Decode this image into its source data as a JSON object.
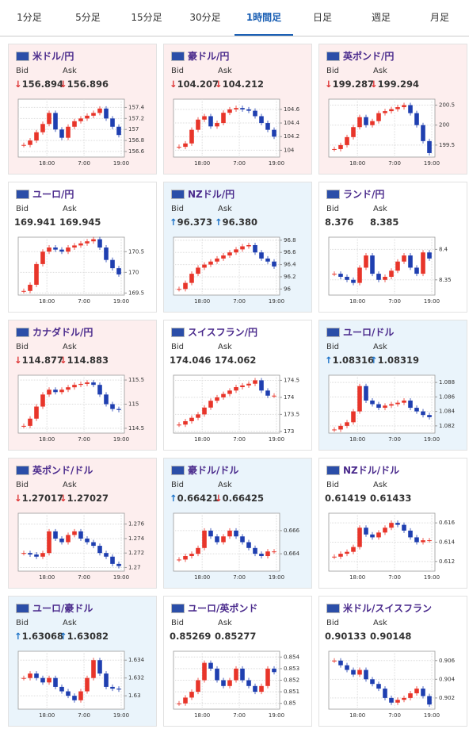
{
  "tabs": [
    "1分足",
    "5分足",
    "15分足",
    "30分足",
    "1時間足",
    "日足",
    "週足",
    "月足"
  ],
  "active_tab": 4,
  "bid_label": "Bid",
  "ask_label": "Ask",
  "x_labels": [
    "18:00",
    "7:00",
    "19:00"
  ],
  "cards": [
    {
      "title": "米ドル/円",
      "bid": "↓156.894",
      "ask": "↓156.896",
      "background": "#fdeeee",
      "chart": {
        "type": "candle",
        "ylim": [
          156.5,
          157.55
        ],
        "yticks": [
          156.6,
          156.8,
          157,
          157.2,
          157.4
        ],
        "values": [
          156.72,
          156.8,
          156.95,
          157.1,
          157.3,
          157.0,
          156.85,
          157.05,
          157.15,
          157.2,
          157.25,
          157.3,
          157.38,
          157.2,
          157.05,
          156.9
        ]
      }
    },
    {
      "title": "豪ドル/円",
      "bid": "↓104.207",
      "ask": "↓104.212",
      "background": "#fdeeee",
      "chart": {
        "type": "candle",
        "ylim": [
          103.9,
          104.75
        ],
        "yticks": [
          104,
          104.2,
          104.4,
          104.6
        ],
        "values": [
          104.05,
          104.1,
          104.3,
          104.45,
          104.5,
          104.35,
          104.4,
          104.55,
          104.6,
          104.62,
          104.6,
          104.58,
          104.5,
          104.4,
          104.3,
          104.2
        ]
      }
    },
    {
      "title": "英ポンド/円",
      "bid": "↓199.287",
      "ask": "↓199.294",
      "background": "#fdeeee",
      "chart": {
        "type": "candle",
        "ylim": [
          199.2,
          200.65
        ],
        "yticks": [
          199.5,
          200,
          200.5
        ],
        "values": [
          199.4,
          199.5,
          199.7,
          199.95,
          200.2,
          200.0,
          200.1,
          200.3,
          200.35,
          200.4,
          200.45,
          200.5,
          200.3,
          200.0,
          199.6,
          199.3
        ]
      }
    },
    {
      "title": "ユーロ/円",
      "bid": "169.941",
      "ask": "169.945",
      "background": "#ffffff",
      "chart": {
        "type": "candle",
        "ylim": [
          169.45,
          170.85
        ],
        "yticks": [
          169.5,
          170,
          170.5
        ],
        "values": [
          169.55,
          169.7,
          170.2,
          170.5,
          170.6,
          170.55,
          170.5,
          170.6,
          170.65,
          170.7,
          170.75,
          170.8,
          170.6,
          170.3,
          170.1,
          169.95
        ]
      }
    },
    {
      "title": "NZドル/円",
      "bid": "↑96.373",
      "ask": "↑96.380",
      "background": "#eaf4fb",
      "chart": {
        "type": "candle",
        "ylim": [
          95.9,
          96.85
        ],
        "yticks": [
          96,
          96.2,
          96.4,
          96.6,
          96.8
        ],
        "values": [
          96.0,
          96.1,
          96.25,
          96.35,
          96.4,
          96.45,
          96.5,
          96.55,
          96.6,
          96.65,
          96.7,
          96.72,
          96.6,
          96.5,
          96.45,
          96.37
        ]
      }
    },
    {
      "title": "ランド/円",
      "bid": "8.376",
      "ask": "8.385",
      "background": "#ffffff",
      "chart": {
        "type": "candle",
        "ylim": [
          8.325,
          8.42
        ],
        "yticks": [
          8.35,
          8.4
        ],
        "values": [
          8.36,
          8.355,
          8.35,
          8.345,
          8.37,
          8.39,
          8.36,
          8.35,
          8.355,
          8.365,
          8.38,
          8.39,
          8.37,
          8.36,
          8.395,
          8.385
        ]
      }
    },
    {
      "title": "カナダドル/円",
      "bid": "↓114.877",
      "ask": "↓114.883",
      "background": "#fdeeee",
      "chart": {
        "type": "candle",
        "ylim": [
          114.4,
          115.6
        ],
        "yticks": [
          114.5,
          115,
          115.5
        ],
        "values": [
          114.55,
          114.7,
          114.95,
          115.2,
          115.3,
          115.25,
          115.3,
          115.35,
          115.4,
          115.42,
          115.45,
          115.4,
          115.2,
          115.0,
          114.9,
          114.88
        ]
      }
    },
    {
      "title": "スイスフラン/円",
      "bid": "174.046",
      "ask": "174.062",
      "background": "#ffffff",
      "chart": {
        "type": "candle",
        "ylim": [
          172.95,
          174.65
        ],
        "yticks": [
          173,
          173.5,
          174,
          174.5
        ],
        "values": [
          173.2,
          173.3,
          173.4,
          173.5,
          173.7,
          173.9,
          174.0,
          174.1,
          174.2,
          174.3,
          174.35,
          174.4,
          174.5,
          174.2,
          174.05,
          174.05
        ]
      }
    },
    {
      "title": "ユーロ/ドル",
      "bid": "↑1.08316",
      "ask": "↑1.08319",
      "background": "#eaf4fb",
      "chart": {
        "type": "candle",
        "ylim": [
          1.081,
          1.089
        ],
        "yticks": [
          1.082,
          1.084,
          1.086,
          1.088
        ],
        "values": [
          1.0815,
          1.082,
          1.0825,
          1.084,
          1.0875,
          1.0855,
          1.085,
          1.0845,
          1.0848,
          1.085,
          1.0852,
          1.0855,
          1.0845,
          1.084,
          1.0835,
          1.0832
        ]
      }
    },
    {
      "title": "英ポンド/ドル",
      "bid": "↓1.27017",
      "ask": "↓1.27027",
      "background": "#fdeeee",
      "chart": {
        "type": "candle",
        "ylim": [
          1.2695,
          1.2775
        ],
        "yticks": [
          1.27,
          1.272,
          1.274,
          1.276
        ],
        "values": [
          1.272,
          1.2718,
          1.2715,
          1.272,
          1.275,
          1.274,
          1.2735,
          1.2745,
          1.275,
          1.274,
          1.2735,
          1.273,
          1.272,
          1.2715,
          1.2705,
          1.2702
        ]
      }
    },
    {
      "title": "豪ドル/ドル",
      "bid": "↑0.66421",
      "ask": "↓0.66425",
      "background": "#eaf4fb",
      "chart": {
        "type": "candle",
        "ylim": [
          0.6625,
          0.6675
        ],
        "yticks": [
          0.664,
          0.666
        ],
        "values": [
          0.6635,
          0.6638,
          0.664,
          0.6645,
          0.666,
          0.6655,
          0.665,
          0.6655,
          0.666,
          0.6655,
          0.665,
          0.6645,
          0.664,
          0.6638,
          0.6642,
          0.6642
        ]
      }
    },
    {
      "title": "NZドル/ドル",
      "bid": "0.61419",
      "ask": "0.61433",
      "background": "#ffffff",
      "chart": {
        "type": "candle",
        "ylim": [
          0.611,
          0.617
        ],
        "yticks": [
          0.612,
          0.614,
          0.616
        ],
        "values": [
          0.6125,
          0.6128,
          0.613,
          0.6135,
          0.6155,
          0.6148,
          0.6145,
          0.615,
          0.6155,
          0.616,
          0.6158,
          0.6152,
          0.6145,
          0.614,
          0.6142,
          0.6142
        ]
      }
    },
    {
      "title": "ユーロ/豪ドル",
      "bid": "↑1.63068",
      "ask": "↑1.63082",
      "background": "#eaf4fb",
      "chart": {
        "type": "candle",
        "ylim": [
          1.6285,
          1.635
        ],
        "yticks": [
          1.63,
          1.632,
          1.634
        ],
        "values": [
          1.632,
          1.6325,
          1.632,
          1.6315,
          1.632,
          1.631,
          1.6305,
          1.63,
          1.6295,
          1.6305,
          1.632,
          1.634,
          1.6325,
          1.631,
          1.6308,
          1.6307
        ]
      }
    },
    {
      "title": "ユーロ/英ポンド",
      "bid": "0.85269",
      "ask": "0.85277",
      "background": "#ffffff",
      "chart": {
        "type": "candle",
        "ylim": [
          0.8495,
          0.8545
        ],
        "yticks": [
          0.85,
          0.851,
          0.852,
          0.853,
          0.854
        ],
        "values": [
          0.85,
          0.8505,
          0.851,
          0.852,
          0.8535,
          0.853,
          0.852,
          0.8515,
          0.852,
          0.853,
          0.852,
          0.8515,
          0.851,
          0.8515,
          0.853,
          0.8527
        ]
      }
    },
    {
      "title": "米ドル/スイスフラン",
      "bid": "0.90133",
      "ask": "0.90148",
      "background": "#ffffff",
      "chart": {
        "type": "candle",
        "ylim": [
          0.9008,
          0.907
        ],
        "yticks": [
          0.902,
          0.904,
          0.906
        ],
        "values": [
          0.906,
          0.9055,
          0.905,
          0.9045,
          0.905,
          0.904,
          0.9035,
          0.903,
          0.902,
          0.9015,
          0.9018,
          0.902,
          0.9025,
          0.903,
          0.9022,
          0.9013
        ]
      }
    }
  ]
}
